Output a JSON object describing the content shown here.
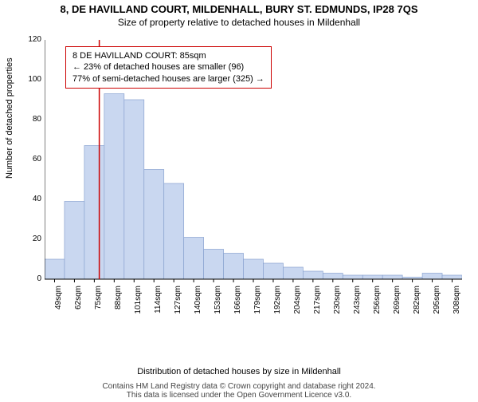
{
  "titles": {
    "main": "8, DE HAVILLAND COURT, MILDENHALL, BURY ST. EDMUNDS, IP28 7QS",
    "sub": "Size of property relative to detached houses in Mildenhall"
  },
  "ylabel": "Number of detached properties",
  "xlabel": "Distribution of detached houses by size in Mildenhall",
  "footer": {
    "line1": "Contains HM Land Registry data © Crown copyright and database right 2024.",
    "line2": "This data is licensed under the Open Government Licence v3.0."
  },
  "info_box": {
    "line1": "8 DE HAVILLAND COURT: 85sqm",
    "line2": "← 23% of detached houses are smaller (96)",
    "line3": "77% of semi-detached houses are larger (325) →"
  },
  "chart": {
    "type": "bar",
    "ylim": [
      0,
      120
    ],
    "ytick_step": 20,
    "bar_fill": "#c9d7f0",
    "bar_stroke": "#8aa3d0",
    "axis_color": "#000000",
    "marker_line_color": "#cc0000",
    "marker_line_x_index": 3,
    "background_color": "#ffffff",
    "x_labels": [
      "49sqm",
      "62sqm",
      "75sqm",
      "88sqm",
      "101sqm",
      "114sqm",
      "127sqm",
      "140sqm",
      "153sqm",
      "166sqm",
      "179sqm",
      "192sqm",
      "204sqm",
      "217sqm",
      "230sqm",
      "243sqm",
      "256sqm",
      "269sqm",
      "282sqm",
      "295sqm",
      "308sqm"
    ],
    "values": [
      10,
      39,
      67,
      93,
      90,
      55,
      48,
      21,
      15,
      13,
      10,
      8,
      6,
      4,
      3,
      2,
      2,
      2,
      1,
      3,
      2
    ]
  }
}
